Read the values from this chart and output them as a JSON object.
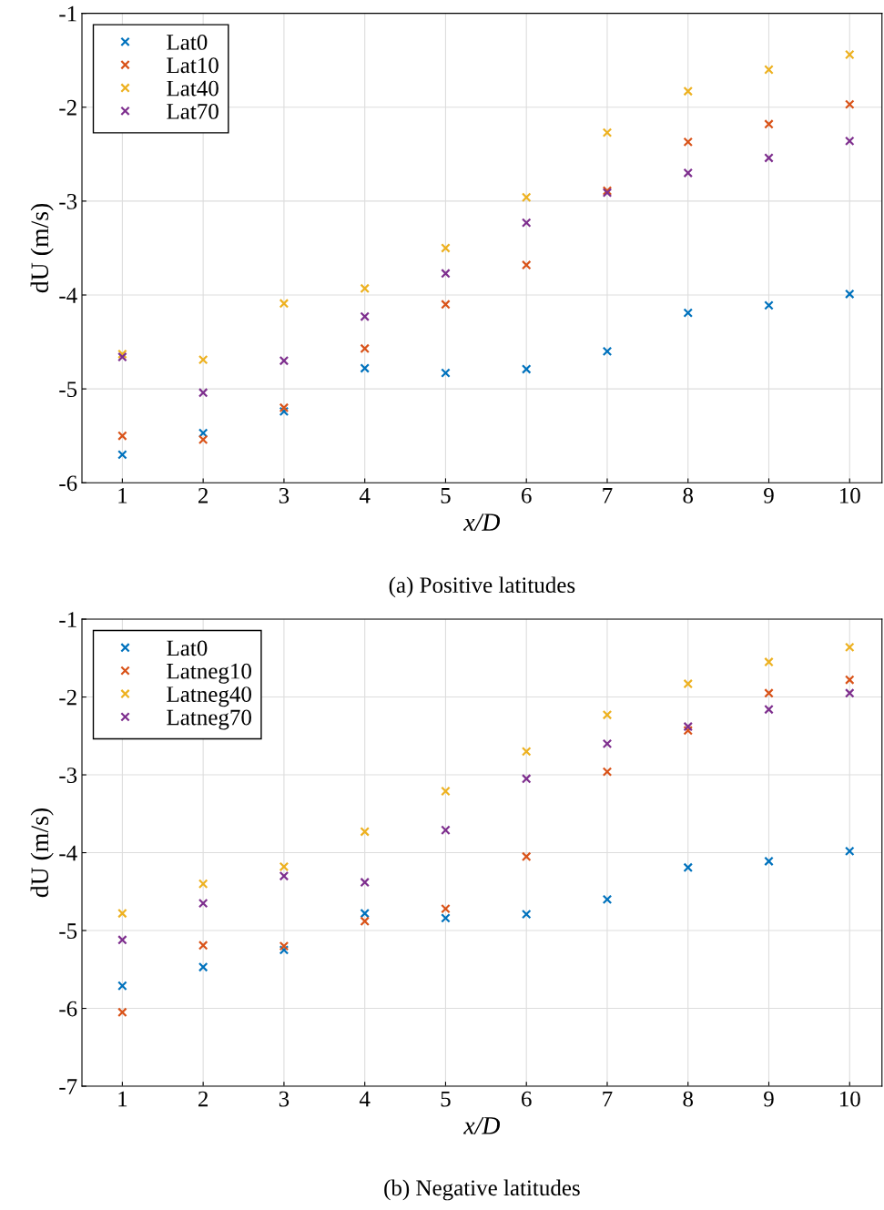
{
  "chart_data": [
    {
      "type": "scatter",
      "title": "(a) Positive latitudes",
      "xlabel": "x/D",
      "ylabel": "dU (m/s)",
      "x": [
        1,
        2,
        3,
        4,
        5,
        6,
        7,
        8,
        9,
        10
      ],
      "xlim": [
        0.5,
        10.4
      ],
      "xticks": [
        1,
        2,
        3,
        4,
        5,
        6,
        7,
        8,
        9,
        10
      ],
      "ylim": [
        -6,
        -1
      ],
      "yticks": [
        -6,
        -5,
        -4,
        -3,
        -2,
        -1
      ],
      "grid": true,
      "legend": "top left",
      "marker": "cross",
      "series": [
        {
          "name": "Lat0",
          "color": "#0072bd",
          "values": [
            -5.7,
            -5.47,
            -5.24,
            -4.78,
            -4.83,
            -4.79,
            -4.6,
            -4.19,
            -4.11,
            -3.99
          ]
        },
        {
          "name": "Lat10",
          "color": "#d95319",
          "values": [
            -5.5,
            -5.54,
            -5.2,
            -4.57,
            -4.1,
            -3.68,
            -2.89,
            -2.37,
            -2.18,
            -1.97
          ]
        },
        {
          "name": "Lat40",
          "color": "#edb120",
          "values": [
            -4.63,
            -4.69,
            -4.09,
            -3.93,
            -3.5,
            -2.96,
            -2.27,
            -1.83,
            -1.6,
            -1.44
          ]
        },
        {
          "name": "Lat70",
          "color": "#7e2f8e",
          "values": [
            -4.66,
            -5.04,
            -4.7,
            -4.23,
            -3.77,
            -3.23,
            -2.91,
            -2.7,
            -2.54,
            -2.36
          ]
        }
      ]
    },
    {
      "type": "scatter",
      "title": "(b) Negative latitudes",
      "xlabel": "x/D",
      "ylabel": "dU (m/s)",
      "x": [
        1,
        2,
        3,
        4,
        5,
        6,
        7,
        8,
        9,
        10
      ],
      "xlim": [
        0.5,
        10.4
      ],
      "xticks": [
        1,
        2,
        3,
        4,
        5,
        6,
        7,
        8,
        9,
        10
      ],
      "ylim": [
        -7,
        -1
      ],
      "yticks": [
        -7,
        -6,
        -5,
        -4,
        -3,
        -2,
        -1
      ],
      "grid": true,
      "legend": "top left",
      "marker": "cross",
      "series": [
        {
          "name": "Lat0",
          "color": "#0072bd",
          "values": [
            -5.71,
            -5.47,
            -5.25,
            -4.78,
            -4.84,
            -4.79,
            -4.6,
            -4.19,
            -4.11,
            -3.98
          ]
        },
        {
          "name": "Latneg10",
          "color": "#d95319",
          "values": [
            -6.05,
            -5.19,
            -5.2,
            -4.88,
            -4.72,
            -4.05,
            -2.96,
            -2.43,
            -1.95,
            -1.78
          ]
        },
        {
          "name": "Latneg40",
          "color": "#edb120",
          "values": [
            -4.78,
            -4.4,
            -4.18,
            -3.73,
            -3.21,
            -2.7,
            -2.23,
            -1.83,
            -1.55,
            -1.36
          ]
        },
        {
          "name": "Latneg70",
          "color": "#7e2f8e",
          "values": [
            -5.12,
            -4.65,
            -4.3,
            -4.38,
            -3.71,
            -3.05,
            -2.6,
            -2.38,
            -2.16,
            -1.95
          ]
        }
      ]
    }
  ]
}
